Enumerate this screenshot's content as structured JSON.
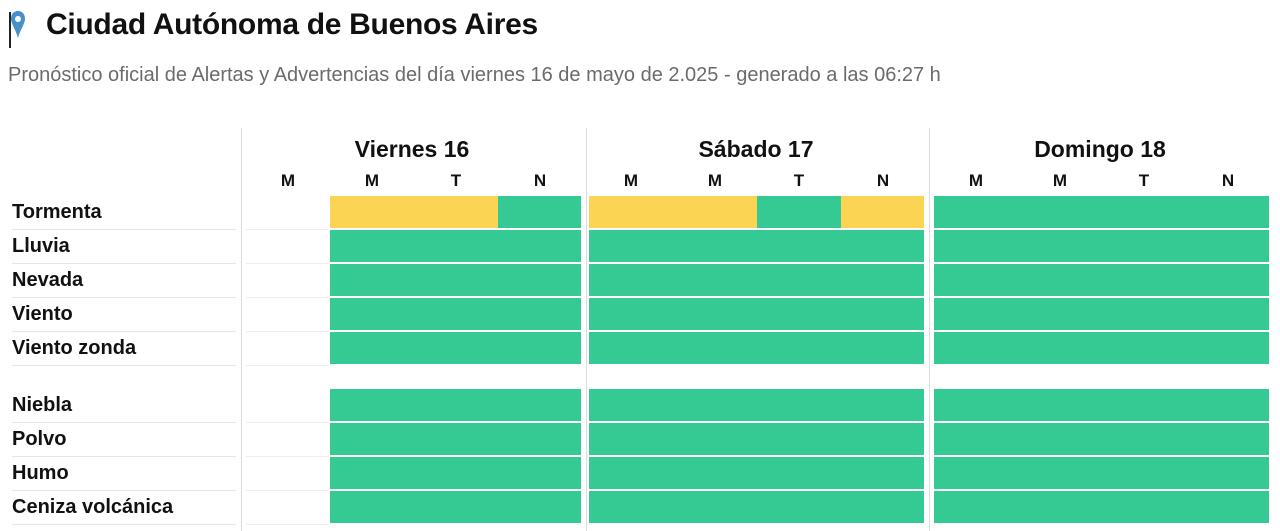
{
  "header": {
    "title": "Ciudad Autónoma de Buenos Aires",
    "icon": "map-pin-icon",
    "subtitle": "Pronóstico oficial de Alertas y Advertencias del día viernes 16 de mayo de 2.025 - generado a las 06:27 h"
  },
  "colors": {
    "sin_alerta": "#35c994",
    "amarilla": "#fcd454",
    "pin": "#4a90c8"
  },
  "days": [
    {
      "label": "Viernes 16",
      "periods": [
        "M",
        "M",
        "T",
        "N"
      ]
    },
    {
      "label": "Sábado 17",
      "periods": [
        "M",
        "M",
        "T",
        "N"
      ]
    },
    {
      "label": "Domingo 18",
      "periods": [
        "M",
        "M",
        "T",
        "N"
      ]
    }
  ],
  "rows": [
    {
      "label": "Tormenta",
      "levels": [
        null,
        "amarilla",
        "amarilla",
        "sin_alerta",
        "amarilla",
        "amarilla",
        "sin_alerta",
        "amarilla",
        "sin_alerta",
        "sin_alerta",
        "sin_alerta",
        "sin_alerta"
      ]
    },
    {
      "label": "Lluvia",
      "levels": [
        null,
        "sin_alerta",
        "sin_alerta",
        "sin_alerta",
        "sin_alerta",
        "sin_alerta",
        "sin_alerta",
        "sin_alerta",
        "sin_alerta",
        "sin_alerta",
        "sin_alerta",
        "sin_alerta"
      ]
    },
    {
      "label": "Nevada",
      "levels": [
        null,
        "sin_alerta",
        "sin_alerta",
        "sin_alerta",
        "sin_alerta",
        "sin_alerta",
        "sin_alerta",
        "sin_alerta",
        "sin_alerta",
        "sin_alerta",
        "sin_alerta",
        "sin_alerta"
      ]
    },
    {
      "label": "Viento",
      "levels": [
        null,
        "sin_alerta",
        "sin_alerta",
        "sin_alerta",
        "sin_alerta",
        "sin_alerta",
        "sin_alerta",
        "sin_alerta",
        "sin_alerta",
        "sin_alerta",
        "sin_alerta",
        "sin_alerta"
      ]
    },
    {
      "label": "Viento zonda",
      "levels": [
        null,
        "sin_alerta",
        "sin_alerta",
        "sin_alerta",
        "sin_alerta",
        "sin_alerta",
        "sin_alerta",
        "sin_alerta",
        "sin_alerta",
        "sin_alerta",
        "sin_alerta",
        "sin_alerta"
      ]
    },
    {
      "label": "Niebla",
      "levels": [
        null,
        "sin_alerta",
        "sin_alerta",
        "sin_alerta",
        "sin_alerta",
        "sin_alerta",
        "sin_alerta",
        "sin_alerta",
        "sin_alerta",
        "sin_alerta",
        "sin_alerta",
        "sin_alerta"
      ]
    },
    {
      "label": "Polvo",
      "levels": [
        null,
        "sin_alerta",
        "sin_alerta",
        "sin_alerta",
        "sin_alerta",
        "sin_alerta",
        "sin_alerta",
        "sin_alerta",
        "sin_alerta",
        "sin_alerta",
        "sin_alerta",
        "sin_alerta"
      ]
    },
    {
      "label": "Humo",
      "levels": [
        null,
        "sin_alerta",
        "sin_alerta",
        "sin_alerta",
        "sin_alerta",
        "sin_alerta",
        "sin_alerta",
        "sin_alerta",
        "sin_alerta",
        "sin_alerta",
        "sin_alerta",
        "sin_alerta"
      ]
    },
    {
      "label": "Ceniza volcánica",
      "levels": [
        null,
        "sin_alerta",
        "sin_alerta",
        "sin_alerta",
        "sin_alerta",
        "sin_alerta",
        "sin_alerta",
        "sin_alerta",
        "sin_alerta",
        "sin_alerta",
        "sin_alerta",
        "sin_alerta"
      ]
    }
  ]
}
